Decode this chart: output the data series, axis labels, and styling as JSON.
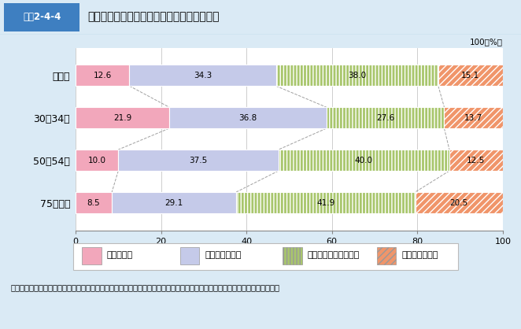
{
  "title_box": "図表2-4-4",
  "title_text": "「死ぬのがとてもこわい」と答えた人の割合",
  "categories": [
    "全年齢",
    "30～34歳",
    "50～54歳",
    "75歳以上"
  ],
  "segments_order": [
    "あてはまる",
    "ややあてはまる",
    "あまりあてはまらない",
    "あてはまらない"
  ],
  "segments": {
    "あてはまる": [
      12.6,
      21.9,
      10.0,
      8.5
    ],
    "ややあてはまる": [
      34.3,
      36.8,
      37.5,
      29.1
    ],
    "あまりあてはまらない": [
      38.0,
      27.6,
      40.0,
      41.9
    ],
    "あてはまらない": [
      15.1,
      13.7,
      12.5,
      20.5
    ]
  },
  "colors": {
    "あてはまる": "#F2A7BB",
    "ややあてはまる": "#C5CAE9",
    "あまりあてはまらない": "#A8C66C",
    "あてはまらない": "#F0956A"
  },
  "hatch": {
    "あてはまる": "",
    "ややあてはまる": "",
    "あまりあてはまらない": "||||",
    "あてはまらない": "////"
  },
  "xlim": [
    0,
    100
  ],
  "xticks": [
    0,
    20,
    40,
    60,
    80,
    100
  ],
  "background_color": "#DAEAF5",
  "plot_bg_color": "#FFFFFF",
  "title_bg_color": "#FFFFFF",
  "title_box_color": "#3E7FC1",
  "source_text": "資料：安心と信頼のある「ライフエンディング・ステージ」の創出に向けた普及啓発に関する研究会（経済産業省）報告書より",
  "bar_height": 0.5
}
